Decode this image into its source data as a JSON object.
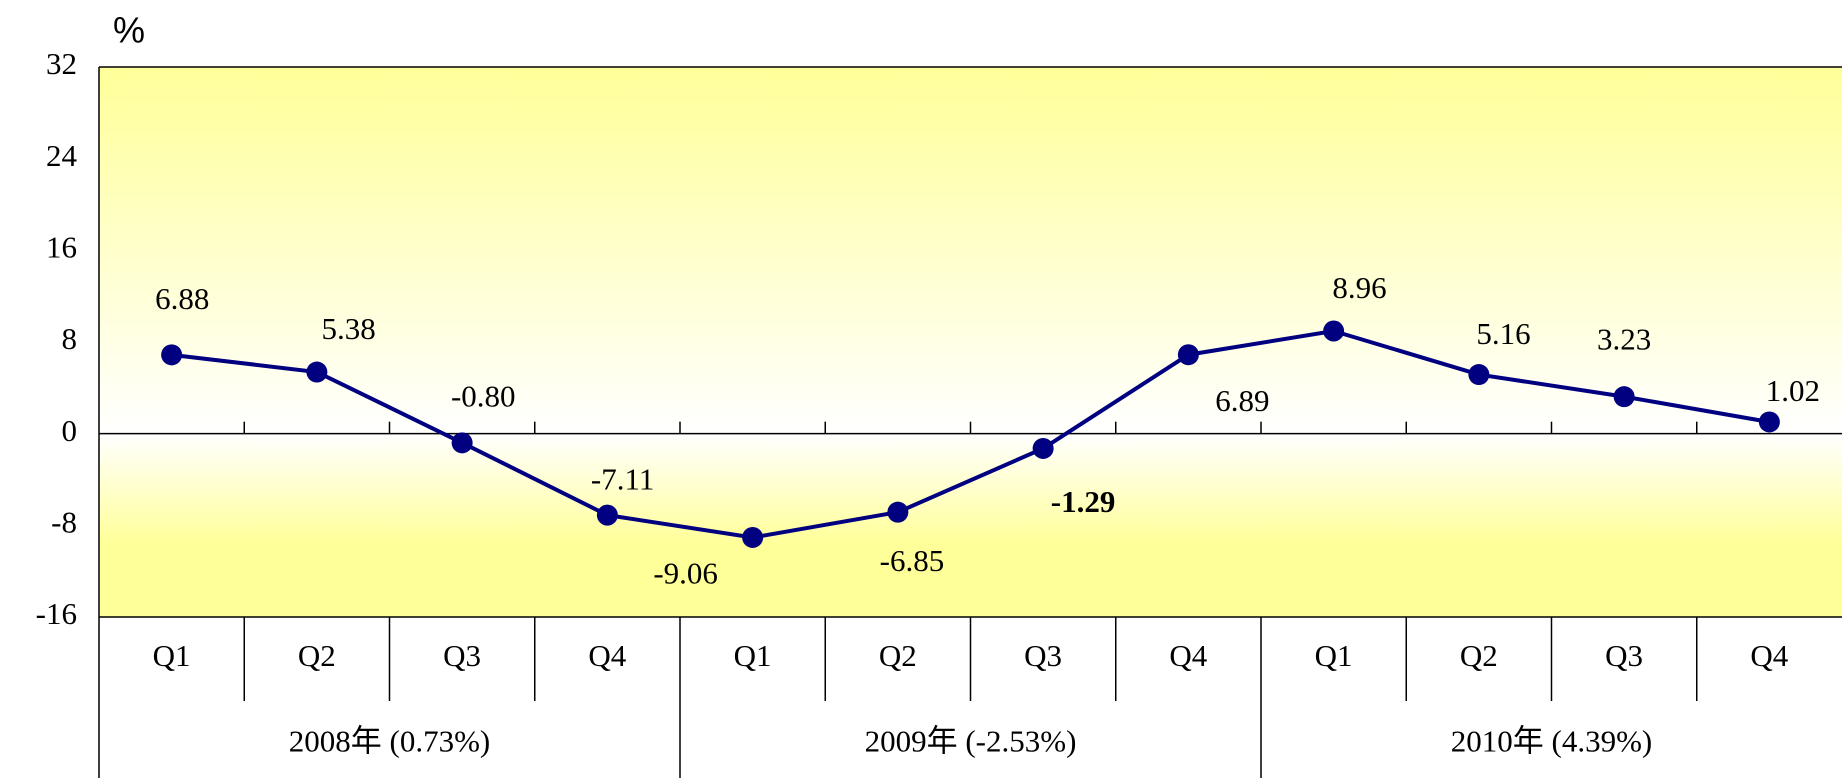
{
  "chart_data": {
    "type": "line",
    "ylabel": "%",
    "categories": [
      "Q1",
      "Q2",
      "Q3",
      "Q4",
      "Q1",
      "Q2",
      "Q3",
      "Q4",
      "Q1",
      "Q2",
      "Q3",
      "Q4"
    ],
    "groups": [
      "2008年 (0.73%)",
      "2009年 (-2.53%)",
      "2010年 (4.39%)"
    ],
    "values": [
      6.88,
      5.38,
      -0.8,
      -7.11,
      -9.06,
      -6.85,
      -1.29,
      6.89,
      8.96,
      5.16,
      3.23,
      1.02
    ],
    "value_labels": [
      "6.88",
      "5.38",
      "-0.80",
      "-7.11",
      "-9.06",
      "-6.85",
      "-1.29",
      "6.89",
      "8.96",
      "5.16",
      "3.23",
      "1.02"
    ],
    "color": "#000080",
    "ylim": [
      -16,
      32
    ],
    "yticks": [
      -16,
      -8,
      0,
      8,
      16,
      24,
      32
    ],
    "grid": false
  }
}
